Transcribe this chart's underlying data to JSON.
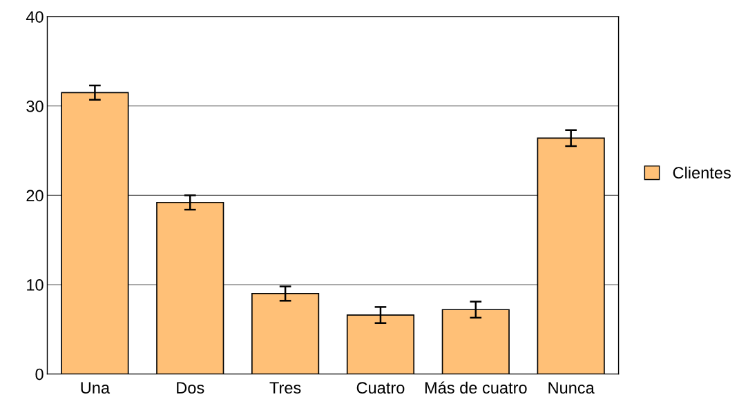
{
  "chart_data": {
    "type": "bar",
    "categories": [
      "Una",
      "Dos",
      "Tres",
      "Cuatro",
      "Más de cuatro",
      "Nunca"
    ],
    "series": [
      {
        "name": "Clientes",
        "color": "#ffc077",
        "values": [
          31.5,
          19.2,
          9.0,
          6.6,
          7.2,
          26.4
        ],
        "errors": [
          0.8,
          0.8,
          0.8,
          0.9,
          0.9,
          0.9
        ]
      }
    ],
    "ylim": [
      0,
      40
    ],
    "yticks": [
      0,
      10,
      20,
      30,
      40
    ],
    "grid": "y",
    "legend": "right"
  }
}
